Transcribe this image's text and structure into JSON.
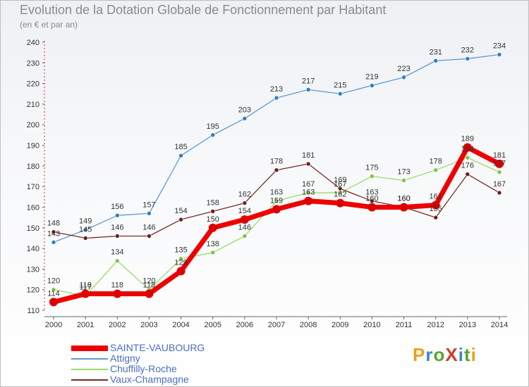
{
  "title": "Evolution de la Dotation Globale de Fonctionnement par Habitant",
  "subtitle": "(en € et par an)",
  "logo": {
    "text": "ProXiti",
    "colors": [
      "#e8a21a",
      "#3b86c8",
      "#58a62d",
      "#d23c2c",
      "#3b86c8",
      "#58a62d",
      "#e8a21a"
    ]
  },
  "chart_data": {
    "type": "line",
    "title": "Evolution de la Dotation Globale de Fonctionnement par Habitant",
    "ylabel": "(en € et par an)",
    "x": [
      "2000",
      "2001",
      "2002",
      "2003",
      "2004",
      "2005",
      "2006",
      "2007",
      "2008",
      "2009",
      "2010",
      "2011",
      "2012",
      "2013",
      "2014"
    ],
    "ylim": [
      110,
      240
    ],
    "yticks": [
      110,
      120,
      130,
      140,
      150,
      160,
      170,
      180,
      190,
      200,
      210,
      220,
      230,
      240
    ],
    "grid": false,
    "legend_position": "bottom-left",
    "series": [
      {
        "name": "SAINTE-VAUBOURG",
        "color": "#ee0000",
        "marker": "#dd0000",
        "width": "thick",
        "values": [
          114,
          118,
          118,
          118,
          129,
          150,
          154,
          159,
          163,
          162,
          160,
          160,
          161,
          189,
          181
        ]
      },
      {
        "name": "Attigny",
        "color": "#5b9bd5",
        "marker": "#2f7ec2",
        "width": "thin",
        "values": [
          143,
          149,
          156,
          157,
          185,
          195,
          203,
          213,
          217,
          215,
          219,
          223,
          231,
          232,
          234
        ]
      },
      {
        "name": "Chuffilly-Roche",
        "color": "#99dd66",
        "marker": "#7cc443",
        "width": "thin",
        "values": [
          120,
          117,
          134,
          120,
          135,
          138,
          146,
          163,
          167,
          167,
          175,
          173,
          178,
          184,
          177
        ]
      },
      {
        "name": "Vaux-Champagne",
        "color": "#7a2a2a",
        "marker": "#6b1f1f",
        "width": "thin",
        "values": [
          148,
          145,
          146,
          146,
          154,
          158,
          162,
          178,
          181,
          169,
          163,
          160,
          155,
          176,
          167
        ]
      }
    ]
  }
}
